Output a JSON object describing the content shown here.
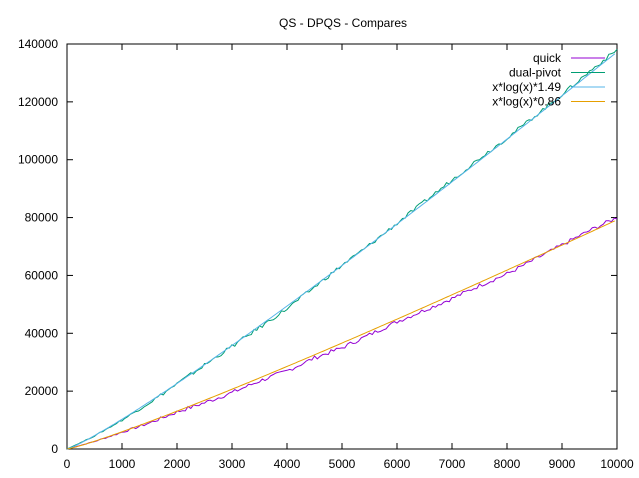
{
  "chart_data": {
    "type": "line",
    "title": "QS - DPQS - Compares",
    "xlabel": "",
    "ylabel": "",
    "xlim": [
      0,
      10000
    ],
    "ylim": [
      0,
      140000
    ],
    "x_ticks": [
      0,
      1000,
      2000,
      3000,
      4000,
      5000,
      6000,
      7000,
      8000,
      9000,
      10000
    ],
    "y_ticks": [
      0,
      20000,
      40000,
      60000,
      80000,
      100000,
      120000,
      140000
    ],
    "grid": false,
    "legend_position": "top-right",
    "series": [
      {
        "name": "quick",
        "color": "#9400d3",
        "kind": "noisy",
        "x": [
          0,
          500,
          1000,
          1500,
          2000,
          2500,
          3000,
          3500,
          4000,
          4500,
          5000,
          5500,
          6000,
          6500,
          7000,
          7500,
          8000,
          8500,
          9000,
          9500,
          10000
        ],
        "y": [
          0,
          2600,
          5800,
          9000,
          12800,
          16000,
          19500,
          23500,
          27000,
          31500,
          35000,
          39500,
          44000,
          48000,
          52000,
          56500,
          60500,
          65500,
          70500,
          75500,
          80000
        ]
      },
      {
        "name": "dual-pivot",
        "color": "#009e73",
        "kind": "noisy",
        "x": [
          0,
          500,
          1000,
          1500,
          2000,
          2500,
          3000,
          3500,
          4000,
          4500,
          5000,
          5500,
          6000,
          6500,
          7000,
          7500,
          8000,
          8500,
          9000,
          9500,
          10000
        ],
        "y": [
          0,
          4500,
          10000,
          16000,
          22500,
          29000,
          35500,
          42000,
          48500,
          56000,
          63500,
          70500,
          78000,
          85500,
          93000,
          100500,
          107500,
          115000,
          122500,
          130500,
          138000
        ]
      },
      {
        "name": "x*log(x)*1.49",
        "color": "#56b4e9",
        "kind": "function",
        "coefficient": 1.49
      },
      {
        "name": "x*log(x)*0.86",
        "color": "#e69f00",
        "kind": "function",
        "coefficient": 0.86
      }
    ]
  }
}
